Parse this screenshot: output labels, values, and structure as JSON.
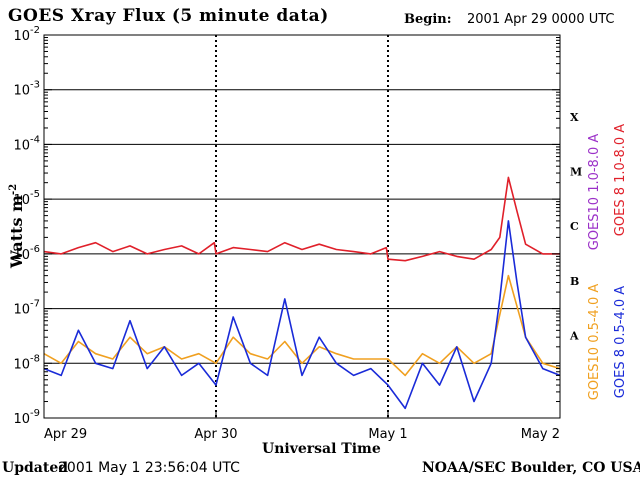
{
  "header": {
    "title": "GOES Xray Flux (5 minute data)",
    "begin_label": "Begin:",
    "begin_value": "2001 Apr 29 0000 UTC"
  },
  "footer": {
    "updated_label": "Updated",
    "updated_value": "2001 May  1 23:56:04 UTC",
    "credit": "NOAA/SEC Boulder, CO USA"
  },
  "chart_data": {
    "type": "line",
    "title": "GOES Xray Flux (5 minute data)",
    "xlabel": "Universal Time",
    "ylabel": "Watts m",
    "ylabel_exponent": "-2",
    "yscale": "log",
    "ylim": [
      1e-09,
      0.01
    ],
    "y_tick_labels": [
      {
        "base": "10",
        "exp": "-9",
        "value": 1e-09
      },
      {
        "base": "10",
        "exp": "-8",
        "value": 1e-08
      },
      {
        "base": "10",
        "exp": "-7",
        "value": 1e-07
      },
      {
        "base": "10",
        "exp": "-6",
        "value": 1e-06
      },
      {
        "base": "10",
        "exp": "-5",
        "value": 1e-05
      },
      {
        "base": "10",
        "exp": "-4",
        "value": 0.0001
      },
      {
        "base": "10",
        "exp": "-3",
        "value": 0.001
      },
      {
        "base": "10",
        "exp": "-2",
        "value": 0.01
      }
    ],
    "x_tick_labels": [
      "Apr 29",
      "Apr 30",
      "May 1",
      "May 2"
    ],
    "xlim_days": [
      0,
      3
    ],
    "flare_classes": [
      {
        "label": "A",
        "value": 1e-08
      },
      {
        "label": "B",
        "value": 1e-07
      },
      {
        "label": "C",
        "value": 1e-06
      },
      {
        "label": "M",
        "value": 1e-05
      },
      {
        "label": "X",
        "value": 0.0001
      }
    ],
    "grid": "horizontal lines at 1e-8 through 1e-3, dashed day separators",
    "legend": [
      {
        "name": "GOES10 1.0-8.0 A",
        "color": "#9b30c8"
      },
      {
        "name": "GOES 8 1.0-8.0 A",
        "color": "#e0202a"
      },
      {
        "name": "GOES10 0.5-4.0 A",
        "color": "#f0a020"
      },
      {
        "name": "GOES 8 0.5-4.0 A",
        "color": "#1a2bd8"
      }
    ],
    "series": [
      {
        "name": "GOES 8 1.0-8.0 A",
        "color": "#e0202a",
        "x": [
          0.0,
          0.1,
          0.2,
          0.3,
          0.4,
          0.5,
          0.6,
          0.7,
          0.8,
          0.9,
          0.99,
          1.0,
          1.1,
          1.2,
          1.3,
          1.4,
          1.5,
          1.6,
          1.7,
          1.8,
          1.9,
          1.99,
          2.0,
          2.1,
          2.2,
          2.3,
          2.4,
          2.5,
          2.6,
          2.65,
          2.7,
          2.75,
          2.8,
          2.9,
          3.0
        ],
        "y": [
          1.1e-06,
          1e-06,
          1.3e-06,
          1.6e-06,
          1.1e-06,
          1.4e-06,
          1e-06,
          1.2e-06,
          1.4e-06,
          1e-06,
          1.6e-06,
          1e-06,
          1.3e-06,
          1.2e-06,
          1.1e-06,
          1.6e-06,
          1.2e-06,
          1.5e-06,
          1.2e-06,
          1.1e-06,
          1e-06,
          1.3e-06,
          8e-07,
          7.5e-07,
          9e-07,
          1.1e-06,
          9e-07,
          8e-07,
          1.2e-06,
          2e-06,
          2.5e-05,
          6e-06,
          1.5e-06,
          1e-06,
          1e-06
        ]
      },
      {
        "name": "GOES10 0.5-4.0 A",
        "color": "#f0a020",
        "x": [
          0.0,
          0.1,
          0.2,
          0.3,
          0.4,
          0.5,
          0.6,
          0.7,
          0.8,
          0.9,
          1.0,
          1.1,
          1.2,
          1.3,
          1.4,
          1.5,
          1.6,
          1.7,
          1.8,
          1.9,
          2.0,
          2.1,
          2.2,
          2.3,
          2.4,
          2.5,
          2.6,
          2.7,
          2.8,
          2.9,
          3.0
        ],
        "y": [
          1.5e-08,
          1e-08,
          2.5e-08,
          1.5e-08,
          1.2e-08,
          3e-08,
          1.5e-08,
          2e-08,
          1.2e-08,
          1.5e-08,
          1e-08,
          3e-08,
          1.5e-08,
          1.2e-08,
          2.5e-08,
          1e-08,
          2e-08,
          1.5e-08,
          1.2e-08,
          1.2e-08,
          1.2e-08,
          6e-09,
          1.5e-08,
          1e-08,
          2e-08,
          1e-08,
          1.5e-08,
          4e-07,
          3e-08,
          1e-08,
          8e-09
        ]
      },
      {
        "name": "GOES 8 0.5-4.0 A",
        "color": "#1a2bd8",
        "x": [
          0.0,
          0.1,
          0.2,
          0.3,
          0.4,
          0.5,
          0.6,
          0.7,
          0.8,
          0.9,
          1.0,
          1.1,
          1.2,
          1.3,
          1.4,
          1.5,
          1.6,
          1.7,
          1.8,
          1.9,
          2.0,
          2.1,
          2.2,
          2.3,
          2.4,
          2.5,
          2.6,
          2.65,
          2.7,
          2.75,
          2.8,
          2.9,
          3.0
        ],
        "y": [
          8e-09,
          6e-09,
          4e-08,
          1e-08,
          8e-09,
          6e-08,
          8e-09,
          2e-08,
          6e-09,
          1e-08,
          4e-09,
          7e-08,
          1e-08,
          6e-09,
          1.5e-07,
          6e-09,
          3e-08,
          1e-08,
          6e-09,
          8e-09,
          4e-09,
          1.5e-09,
          1e-08,
          4e-09,
          2e-08,
          2e-09,
          1e-08,
          1.5e-07,
          4e-06,
          3e-07,
          3e-08,
          8e-09,
          6e-09
        ]
      }
    ]
  }
}
